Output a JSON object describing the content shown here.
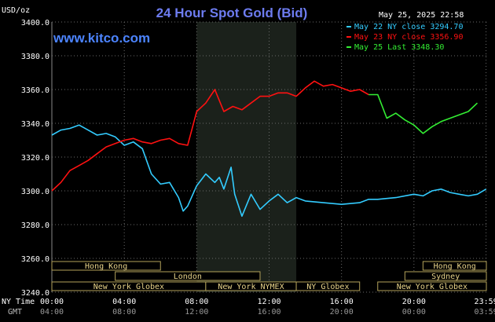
{
  "chart_data": {
    "type": "line",
    "title": "24 Hour Spot Gold (Bid)",
    "unit_label": "USD/oz",
    "watermark": "www.kitco.com",
    "timestamp": "May 25, 2025 22:58",
    "ylim": [
      3240,
      3400
    ],
    "yticks": [
      "3400.0",
      "3380.0",
      "3360.0",
      "3340.0",
      "3320.0",
      "3300.0",
      "3280.0",
      "3260.0",
      "3240.0"
    ],
    "ytick_values": [
      3400,
      3380,
      3360,
      3340,
      3320,
      3300,
      3280,
      3260,
      3240
    ],
    "x_range_hours": [
      0,
      24
    ],
    "xtick_hours": [
      0,
      4,
      8,
      12,
      16,
      20,
      23.983
    ],
    "xaxis_rows": [
      {
        "label": "NY Time",
        "ticks": [
          "00:00",
          "04:00",
          "08:00",
          "12:00",
          "16:00",
          "20:00",
          "23:59"
        ]
      },
      {
        "label": "GMT",
        "ticks": [
          "04:00",
          "08:00",
          "12:00",
          "16:00",
          "20:00",
          "00:00",
          "03:59"
        ]
      }
    ],
    "grid": true,
    "legend_position": "top-right",
    "highlight_span_hours": [
      8,
      13.5
    ],
    "sessions": [
      {
        "name": "Hong Kong",
        "start": 0,
        "end": 6
      },
      {
        "name": "London",
        "start": 3.5,
        "end": 11.5
      },
      {
        "name": "New York Globex",
        "start": 0,
        "end": 8.5
      },
      {
        "name": "New York NYMEX",
        "start": 8.5,
        "end": 13.5
      },
      {
        "name": "NY Globex",
        "start": 13.5,
        "end": 17
      },
      {
        "name": "Hong Kong",
        "start": 20.5,
        "end": 24
      },
      {
        "name": "Sydney",
        "start": 19.5,
        "end": 24
      },
      {
        "name": "New York Globex",
        "start": 18,
        "end": 24
      }
    ],
    "series": [
      {
        "name": "May 22 NY close 3294.70",
        "color": "#33ccff",
        "x": [
          0,
          0.5,
          1,
          1.5,
          2,
          2.5,
          3,
          3.5,
          4,
          4.5,
          5,
          5.5,
          6,
          6.5,
          7,
          7.25,
          7.5,
          8,
          8.5,
          9,
          9.25,
          9.5,
          9.9,
          10.1,
          10.5,
          11,
          11.5,
          12,
          12.5,
          13,
          13.5,
          14,
          15,
          16,
          17,
          17.5,
          18,
          19,
          20,
          20.5,
          21,
          21.5,
          22,
          22.5,
          23,
          23.5,
          23.983
        ],
        "values": [
          3333,
          3336,
          3337,
          3339,
          3336,
          3333,
          3334,
          3332,
          3327,
          3329,
          3325,
          3310,
          3304,
          3305,
          3296,
          3288,
          3291,
          3303,
          3310,
          3305,
          3308,
          3301,
          3314,
          3298,
          3285,
          3298,
          3289,
          3294,
          3298,
          3293,
          3296,
          3294,
          3293,
          3292,
          3293,
          3295,
          3295,
          3296,
          3298,
          3297,
          3300,
          3301,
          3299,
          3298,
          3297,
          3298,
          3301
        ]
      },
      {
        "name": "May 23 NY close 3356.90",
        "color": "#ff1111",
        "x": [
          0,
          0.5,
          1,
          1.5,
          2,
          2.5,
          3,
          3.5,
          4,
          4.5,
          5,
          5.5,
          6,
          6.5,
          7,
          7.5,
          7.75,
          8,
          8.5,
          9,
          9.5,
          10,
          10.5,
          11,
          11.5,
          12,
          12.5,
          13,
          13.5,
          14,
          14.5,
          15,
          15.5,
          16,
          16.5,
          17,
          17.5
        ],
        "values": [
          3300,
          3305,
          3312,
          3315,
          3318,
          3322,
          3326,
          3328,
          3330,
          3331,
          3329,
          3328,
          3330,
          3331,
          3328,
          3327,
          3337,
          3347,
          3352,
          3360,
          3347,
          3350,
          3348,
          3352,
          3356,
          3356,
          3358,
          3358,
          3356,
          3361,
          3365,
          3362,
          3363,
          3361,
          3359,
          3360,
          3357
        ]
      },
      {
        "name": "May 25 Last 3348.30",
        "color": "#33ee33",
        "x": [
          17.5,
          18,
          18.5,
          19,
          19.5,
          20,
          20.5,
          21,
          21.5,
          22,
          22.5,
          23,
          23.5
        ],
        "values": [
          3357,
          3357,
          3343,
          3346,
          3342,
          3339,
          3334,
          3338,
          3341,
          3343,
          3345,
          3347,
          3352
        ]
      }
    ]
  }
}
